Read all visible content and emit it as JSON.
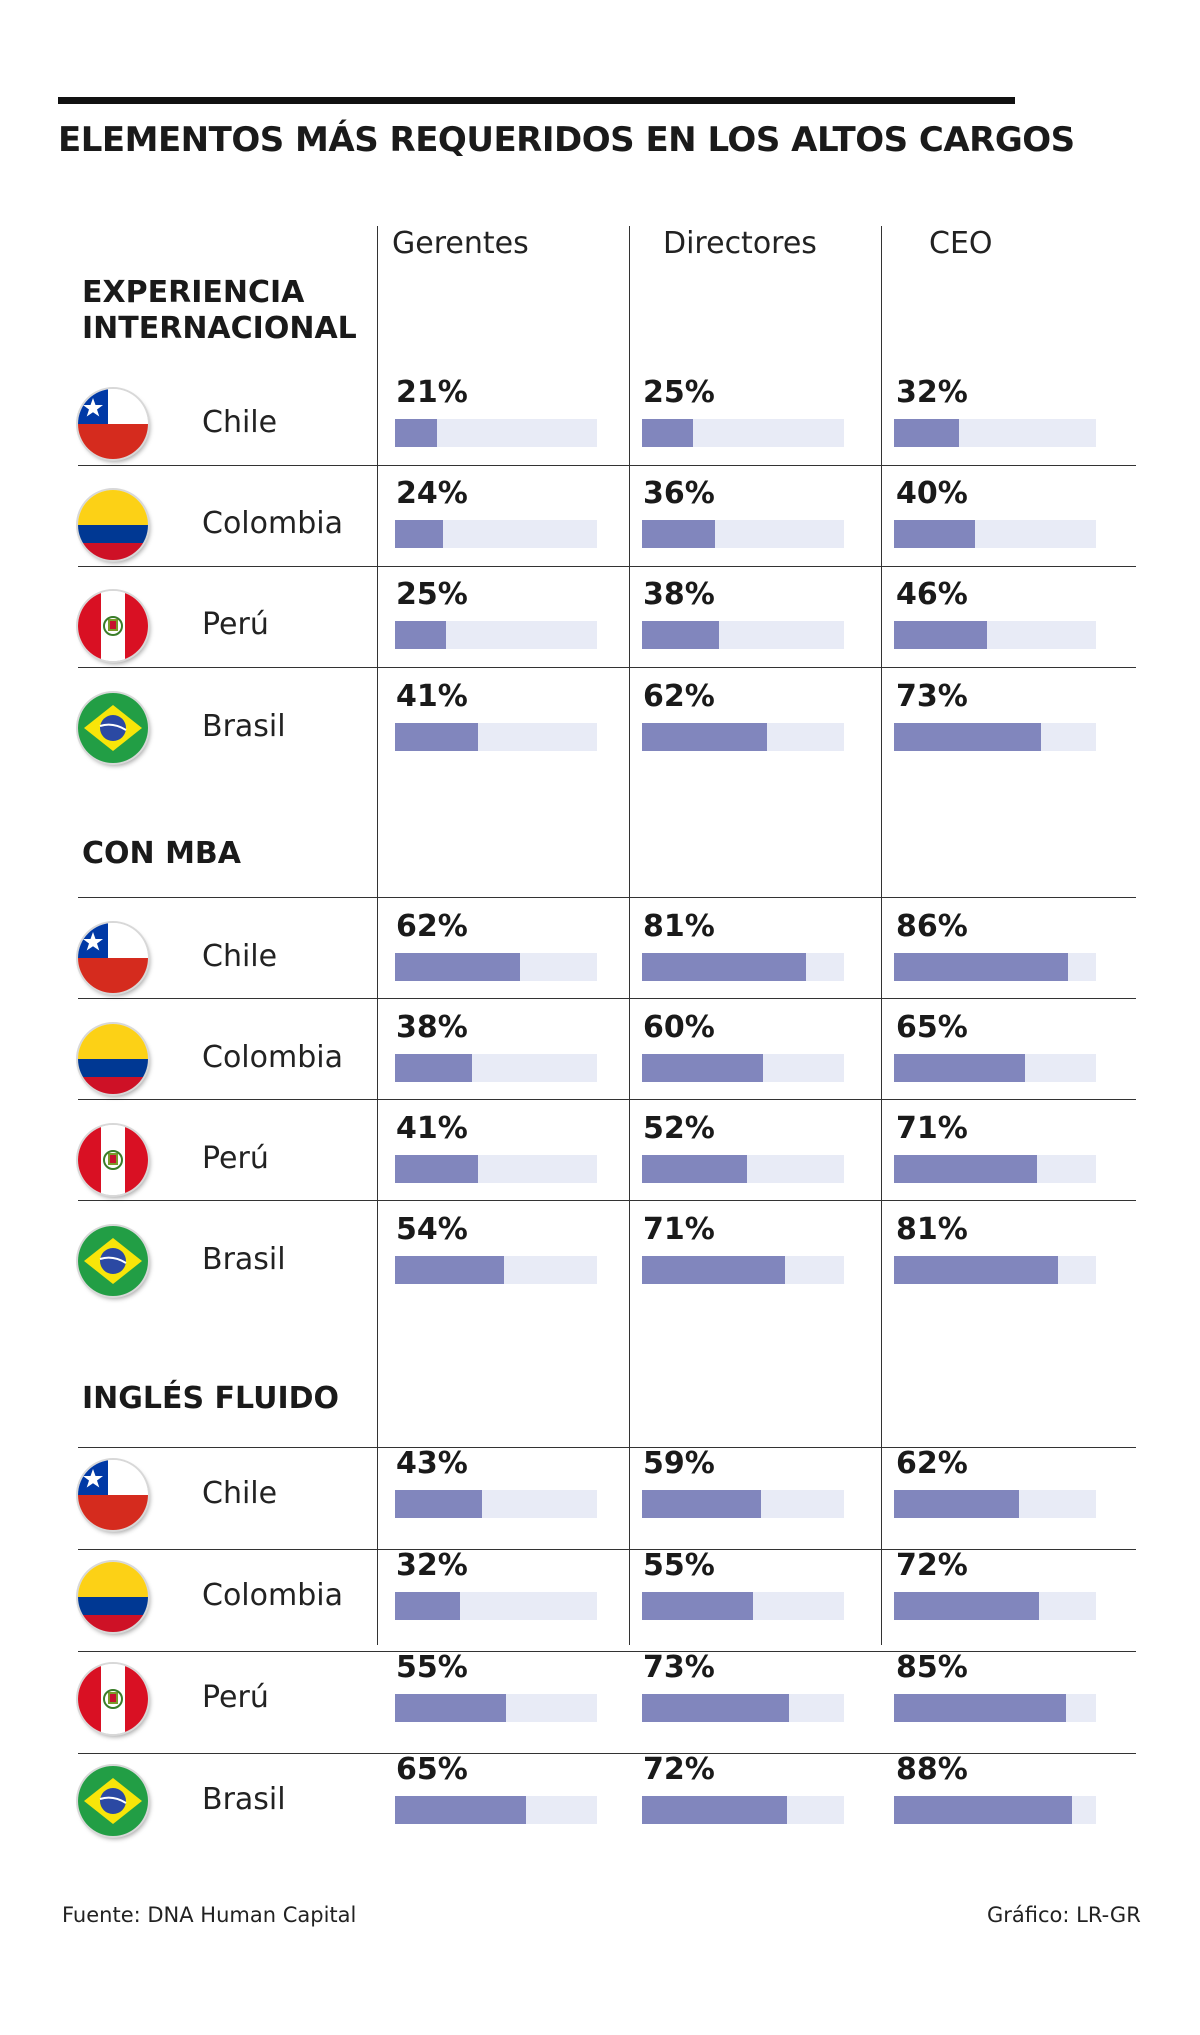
{
  "title": "ELEMENTOS MÁS REQUERIDOS EN LOS ALTOS CARGOS",
  "footer": {
    "source": "Fuente:  DNA Human Capital",
    "credit": "Gráfico: LR-GR"
  },
  "colors": {
    "bar": "#8186bd",
    "track": "#e8ebf6",
    "rule": "#111111"
  },
  "chart_data": {
    "type": "bar",
    "orientation": "horizontal",
    "unit": "%",
    "xlim": [
      0,
      100
    ],
    "title": "ELEMENTOS MÁS REQUERIDOS EN LOS ALTOS CARGOS",
    "columns": [
      "Gerentes",
      "Directores",
      "CEO"
    ],
    "sections": [
      {
        "title": "EXPERIENCIA INTERNACIONAL",
        "rows": [
          {
            "country": "Chile",
            "flag": "chile-flag-icon",
            "values": [
              21,
              25,
              32
            ]
          },
          {
            "country": "Colombia",
            "flag": "colombia-flag-icon",
            "values": [
              24,
              36,
              40
            ]
          },
          {
            "country": "Perú",
            "flag": "peru-flag-icon",
            "values": [
              25,
              38,
              46
            ]
          },
          {
            "country": "Brasil",
            "flag": "brazil-flag-icon",
            "values": [
              41,
              62,
              73
            ]
          }
        ]
      },
      {
        "title": "CON MBA",
        "rows": [
          {
            "country": "Chile",
            "flag": "chile-flag-icon",
            "values": [
              62,
              81,
              86
            ]
          },
          {
            "country": "Colombia",
            "flag": "colombia-flag-icon",
            "values": [
              38,
              60,
              65
            ]
          },
          {
            "country": "Perú",
            "flag": "peru-flag-icon",
            "values": [
              41,
              52,
              71
            ]
          },
          {
            "country": "Brasil",
            "flag": "brazil-flag-icon",
            "values": [
              54,
              71,
              81
            ]
          }
        ]
      },
      {
        "title": "INGLÉS FLUIDO",
        "rows": [
          {
            "country": "Chile",
            "flag": "chile-flag-icon",
            "values": [
              43,
              59,
              62
            ]
          },
          {
            "country": "Colombia",
            "flag": "colombia-flag-icon",
            "values": [
              32,
              55,
              72
            ]
          },
          {
            "country": "Perú",
            "flag": "peru-flag-icon",
            "values": [
              55,
              73,
              85
            ]
          },
          {
            "country": "Brasil",
            "flag": "brazil-flag-icon",
            "values": [
              65,
              72,
              88
            ]
          }
        ]
      }
    ]
  }
}
